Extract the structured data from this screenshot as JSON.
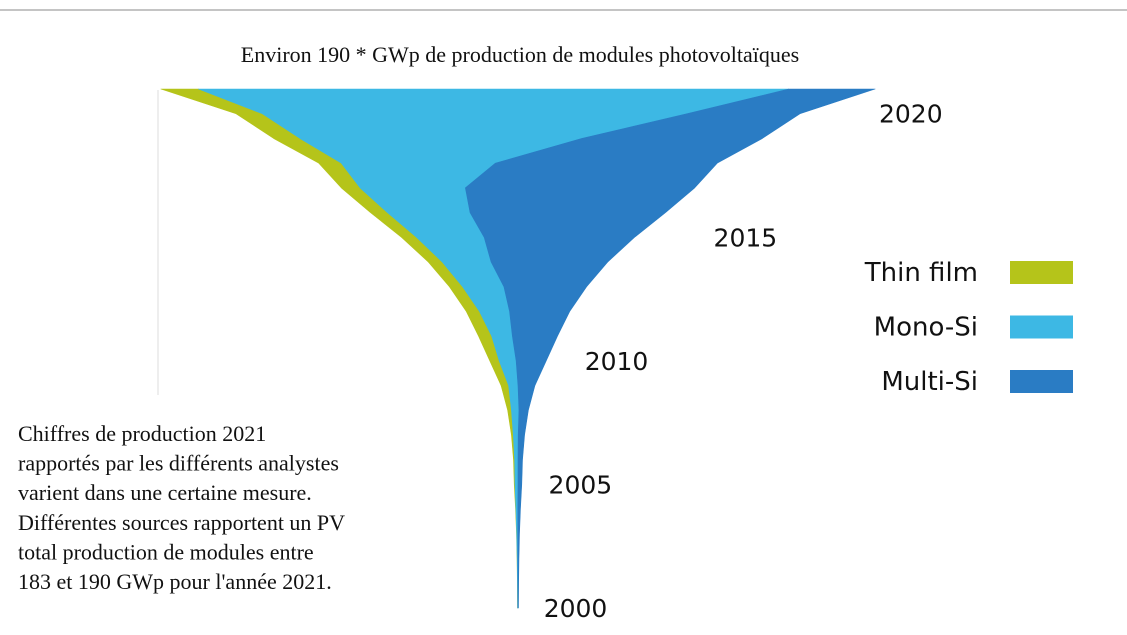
{
  "chart_data": {
    "type": "stream",
    "title": "Environ 190 * GWp de production de modules photovoltaïques",
    "annotation": [
      "Chiffres de production 2021",
      "rapportés par les différents analystes",
      "varient dans une certaine mesure.",
      "Différentes sources rapportent un PV",
      "total production de modules entre",
      "183 et 190 GWp pour l'année 2021."
    ],
    "x": [
      2000,
      2001,
      2002,
      2003,
      2004,
      2005,
      2006,
      2007,
      2008,
      2009,
      2010,
      2011,
      2012,
      2013,
      2014,
      2015,
      2016,
      2017,
      2018,
      2019,
      2020,
      2021
    ],
    "xlim": [
      2000,
      2021
    ],
    "xticks": [
      2000,
      2005,
      2010,
      2015,
      2020
    ],
    "series": [
      {
        "name": "Thin film",
        "color": "#b5c41a",
        "values": [
          0.02,
          0.02,
          0.03,
          0.05,
          0.1,
          0.2,
          0.3,
          0.5,
          1,
          2,
          2.5,
          3.5,
          3.5,
          3.5,
          3.7,
          4,
          4.5,
          5,
          6,
          7,
          7,
          10
        ]
      },
      {
        "name": "Mono-Si",
        "color": "#3db8e4",
        "values": [
          0.08,
          0.12,
          0.17,
          0.3,
          0.5,
          0.8,
          0.9,
          1.3,
          2,
          2.5,
          4.5,
          5.5,
          8,
          11,
          13,
          18,
          22,
          28,
          41,
          75,
          113,
          157
        ]
      },
      {
        "name": "Multi-Si",
        "color": "#2a7cc4",
        "values": [
          0.15,
          0.2,
          0.3,
          0.45,
          0.7,
          1,
          1.2,
          1.7,
          2.5,
          4.5,
          8,
          12,
          16,
          22,
          31,
          40,
          52,
          61,
          59,
          48,
          30,
          23
        ]
      }
    ]
  }
}
